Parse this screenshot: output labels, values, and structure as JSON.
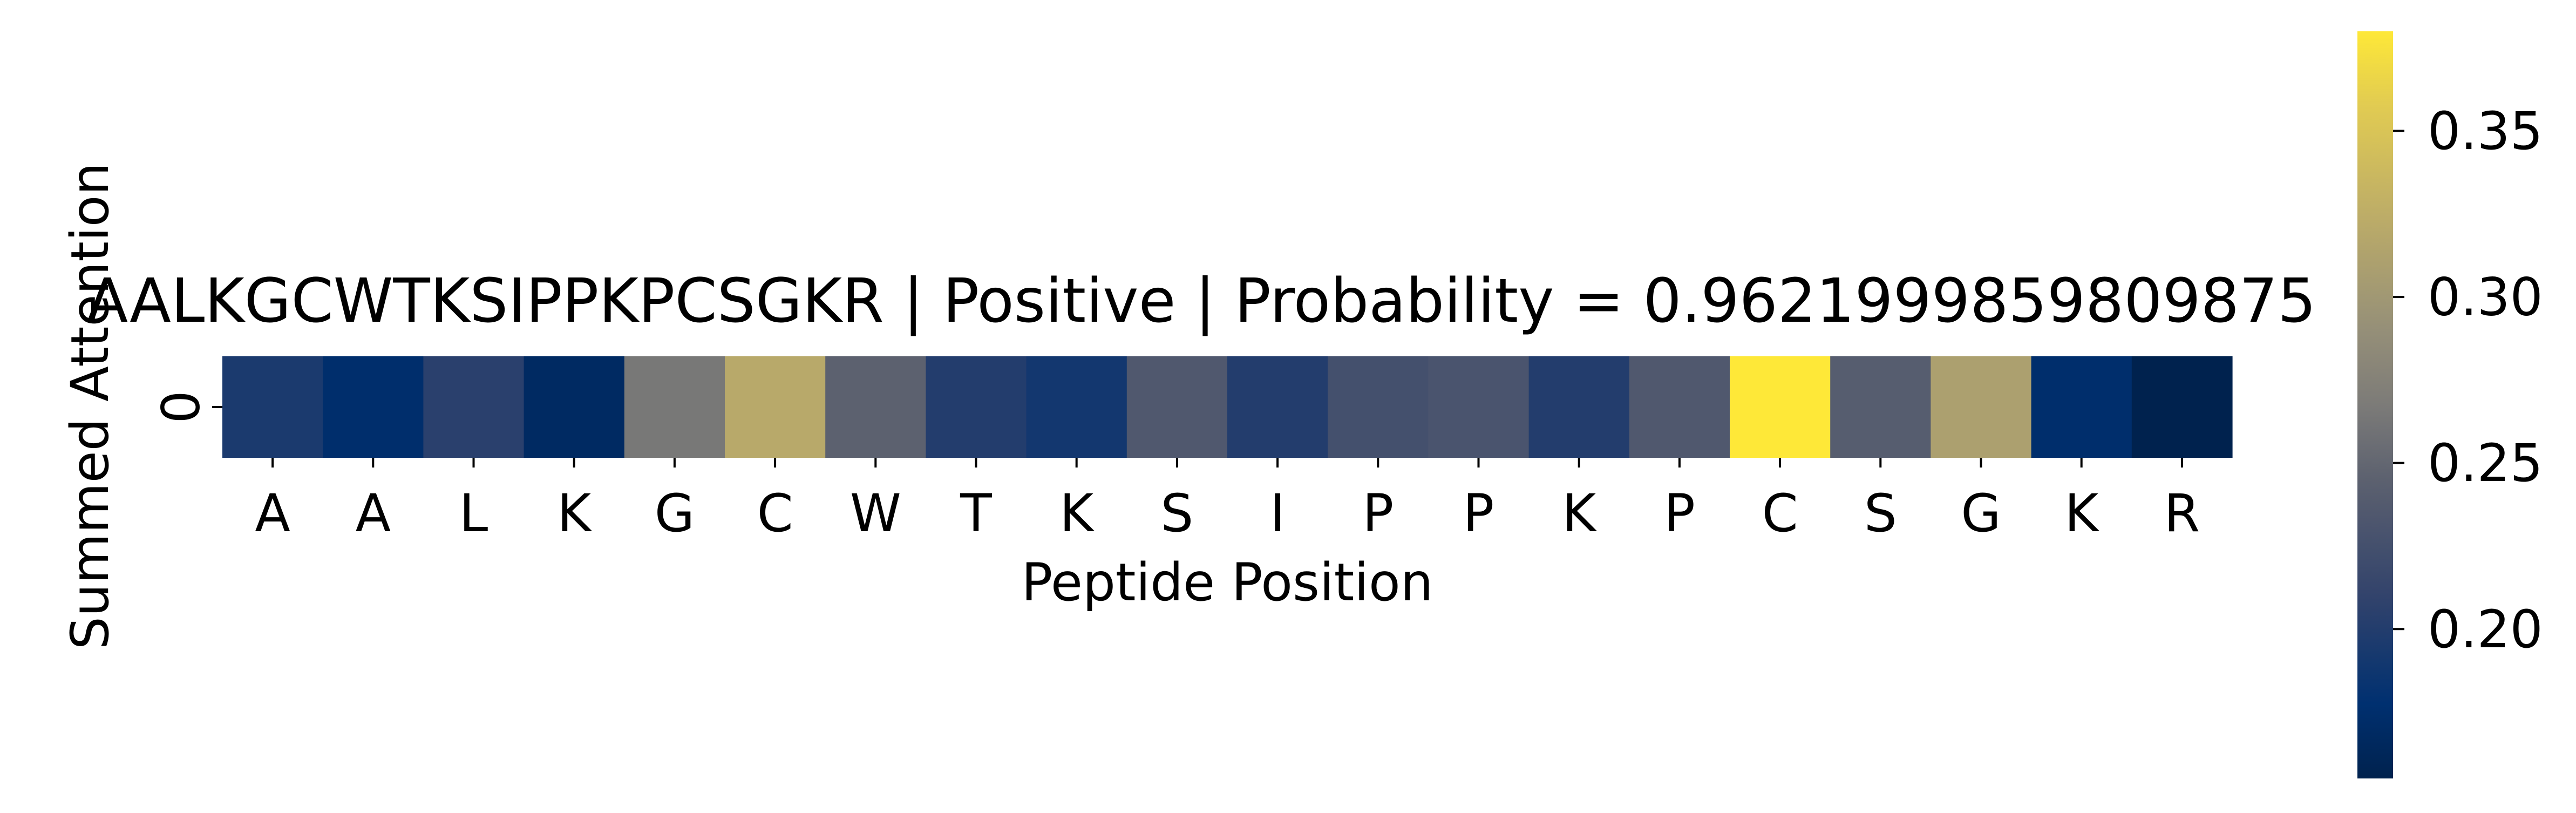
{
  "chart_data": {
    "type": "heatmap",
    "title": "AALKGCWTKSIPPKPCSGKR | Positive | Probability = 0.9621999859809875",
    "xlabel": "Peptide Position",
    "ylabel": "Summed Attention",
    "x": [
      "A",
      "A",
      "L",
      "K",
      "G",
      "C",
      "W",
      "T",
      "K",
      "S",
      "I",
      "P",
      "P",
      "K",
      "P",
      "C",
      "S",
      "G",
      "K",
      "R"
    ],
    "y": [
      "0"
    ],
    "values": [
      [
        0.195,
        0.175,
        0.205,
        0.168,
        0.265,
        0.32,
        0.245,
        0.2,
        0.19,
        0.235,
        0.2,
        0.225,
        0.23,
        0.2,
        0.235,
        0.38,
        0.24,
        0.31,
        0.175,
        0.155
      ]
    ],
    "colormap": "cividis",
    "colorbar": {
      "min": 0.155,
      "max": 0.38,
      "ticks": [
        0.2,
        0.25,
        0.3,
        0.35
      ],
      "tick_labels": [
        "0.20",
        "0.25",
        "0.30",
        "0.35"
      ]
    },
    "grid": false,
    "legend": "colorbar-right"
  }
}
